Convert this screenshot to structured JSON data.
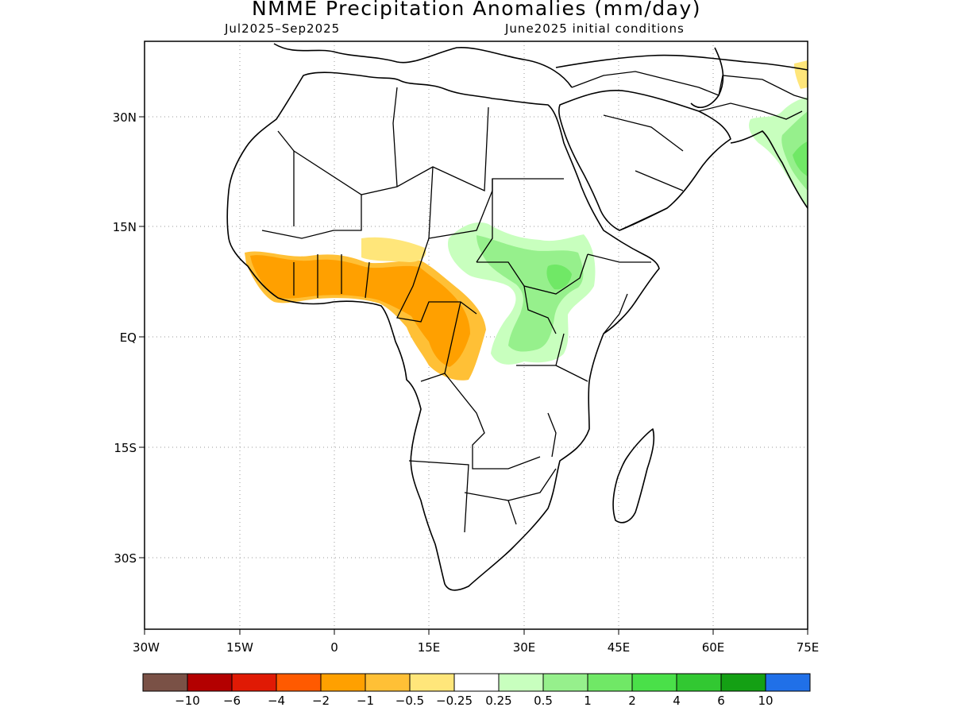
{
  "title": "NMME Precipitation Anomalies (mm/day)",
  "subtitle_left": "Jul2025–Sep2025",
  "subtitle_right": "June2025 initial conditions",
  "lat_ticks": [
    "30N",
    "15N",
    "EQ",
    "15S",
    "30S"
  ],
  "lon_ticks": [
    "30W",
    "15W",
    "0",
    "15E",
    "30E",
    "45E",
    "60E",
    "75E"
  ],
  "legend": {
    "colors": [
      "#7a5146",
      "#b30000",
      "#e01a05",
      "#ff5a00",
      "#ffa000",
      "#ffc036",
      "#ffe67a",
      "#ffffff",
      "#c8ffbe",
      "#96f08c",
      "#70e866",
      "#4ae049",
      "#32c832",
      "#14a014",
      "#2070e8"
    ],
    "labels": [
      "−10",
      "−6",
      "−4",
      "−2",
      "−1",
      "−0.5",
      "−0.25",
      "0.25",
      "0.5",
      "1",
      "2",
      "4",
      "6",
      "10"
    ]
  }
}
